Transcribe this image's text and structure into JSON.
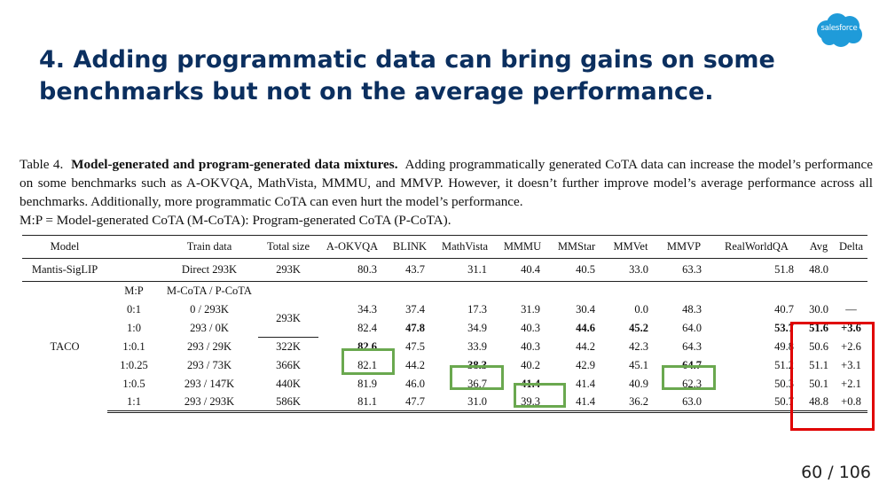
{
  "logo": {
    "text": "salesforce",
    "color": "#1f9bd9"
  },
  "slide": {
    "title": "4. Adding programmatic data can bring gains on some benchmarks but not on the average performance.",
    "page": "60 / 106"
  },
  "caption": {
    "label": "Table 4.",
    "heading": "Model-generated and program-generated data mixtures.",
    "body": "Adding programmatically generated CoTA data can increase the model’s performance on some benchmarks such as A-OKVQA, MathVista, MMMU, and MMVP. However, it doesn’t further improve model’s average performance across all benchmarks. Additionally, more programmatic CoTA can even hurt the model’s performance.",
    "ratio_note": "M:P = Model-generated CoTA (M-CoTA): Program-generated CoTA (P-CoTA)."
  },
  "table": {
    "headers": [
      "Model",
      "",
      "Train data",
      "Total size",
      "A-OKVQA",
      "BLINK",
      "MathVista",
      "MMMU",
      "MMStar",
      "MMVet",
      "MMVP",
      "RealWorldQA",
      "Avg",
      "Delta"
    ],
    "baseline": {
      "model": "Mantis-SigLIP",
      "train": "Direct 293K",
      "size": "293K",
      "values": [
        "80.3",
        "43.7",
        "31.1",
        "40.4",
        "40.5",
        "33.0",
        "63.3",
        "51.8",
        "48.0"
      ]
    },
    "taco_label": "TACO",
    "mp_header": "M:P",
    "mix_header": "M-CoTA / P-CoTA",
    "shared_size": "293K",
    "rows": [
      {
        "mp": "0:1",
        "train": "0 / 293K",
        "size": "",
        "values": [
          "34.3",
          "37.4",
          "17.3",
          "31.9",
          "30.4",
          "0.0",
          "48.3",
          "40.7",
          "30.0"
        ],
        "delta": "—"
      },
      {
        "mp": "1:0",
        "train": "293 / 0K",
        "size": "",
        "values": [
          "82.4",
          "47.8",
          "34.9",
          "40.3",
          "44.6",
          "45.2",
          "64.0",
          "53.7",
          "51.6"
        ],
        "delta": "+3.6"
      },
      {
        "mp": "1:0.1",
        "train": "293 / 29K",
        "size": "322K",
        "values": [
          "82.6",
          "47.5",
          "33.9",
          "40.3",
          "44.2",
          "42.3",
          "64.3",
          "49.8",
          "50.6"
        ],
        "delta": "+2.6"
      },
      {
        "mp": "1:0.25",
        "train": "293 / 73K",
        "size": "366K",
        "values": [
          "82.1",
          "44.2",
          "38.3",
          "40.2",
          "42.9",
          "45.1",
          "64.7",
          "51.2",
          "51.1"
        ],
        "delta": "+3.1"
      },
      {
        "mp": "1:0.5",
        "train": "293 / 147K",
        "size": "440K",
        "values": [
          "81.9",
          "46.0",
          "36.7",
          "41.4",
          "41.4",
          "40.9",
          "62.3",
          "50.3",
          "50.1"
        ],
        "delta": "+2.1"
      },
      {
        "mp": "1:1",
        "train": "293 / 293K",
        "size": "586K",
        "values": [
          "81.1",
          "47.7",
          "31.0",
          "39.3",
          "41.4",
          "36.2",
          "63.0",
          "50.7",
          "48.8"
        ],
        "delta": "+0.8"
      }
    ]
  },
  "highlight_colors": {
    "green": "#6aa84f",
    "red": "#e00000"
  }
}
